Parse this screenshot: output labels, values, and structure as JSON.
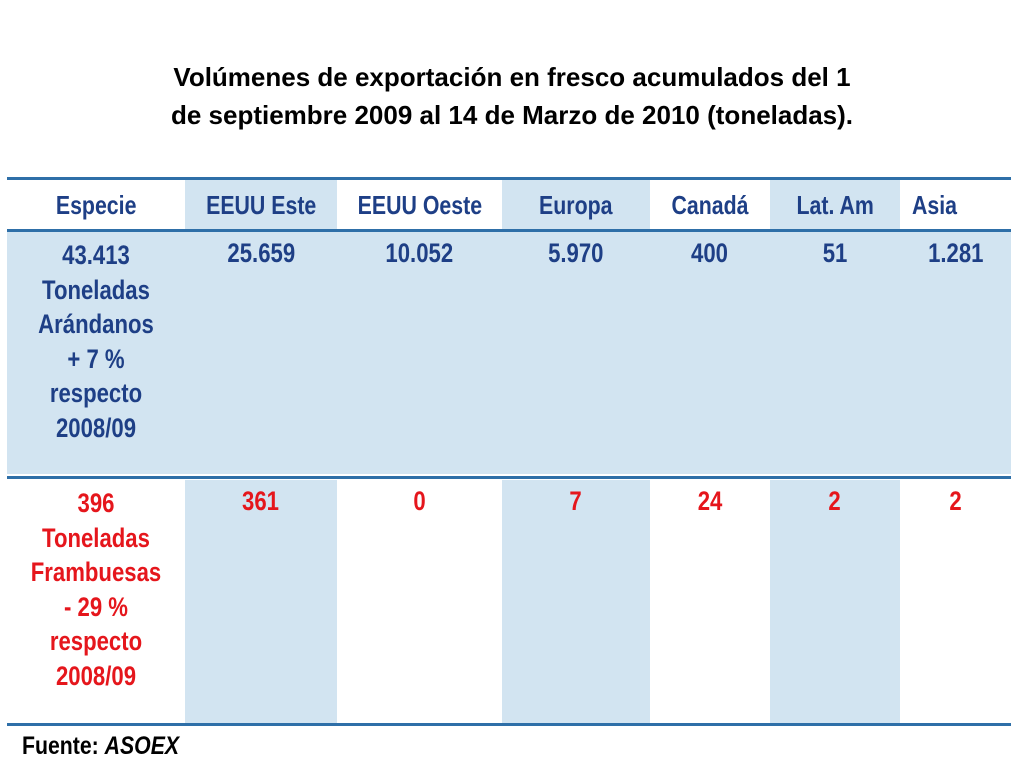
{
  "title": {
    "line1": "Volúmenes de exportación en fresco acumulados del 1",
    "line2": "de septiembre 2009 al 14 de Marzo de 2010 (toneladas)."
  },
  "table": {
    "headers": [
      "Especie",
      "EEUU Este",
      "EEUU Oeste",
      "Europa",
      "Canadá",
      "Lat. Am",
      "Asia"
    ],
    "rows": [
      {
        "species_lines": [
          "43.413",
          "Toneladas",
          "Arándanos",
          "+ 7 %",
          "respecto",
          "2008/09"
        ],
        "values": [
          "25.659",
          "10.052",
          "5.970",
          "400",
          "51",
          "1.281"
        ],
        "text_color": "#1e3f86"
      },
      {
        "species_lines": [
          "396",
          "Toneladas",
          "Frambuesas",
          "- 29 %",
          "respecto",
          "2008/09"
        ],
        "values": [
          "361",
          "0",
          "7",
          "24",
          "2",
          "2"
        ],
        "text_color": "#e5161c"
      }
    ],
    "shade_color": "#d2e4f1",
    "rule_color": "#2e6fa8"
  },
  "source": {
    "label": "Fuente:",
    "name": "ASOEX"
  }
}
